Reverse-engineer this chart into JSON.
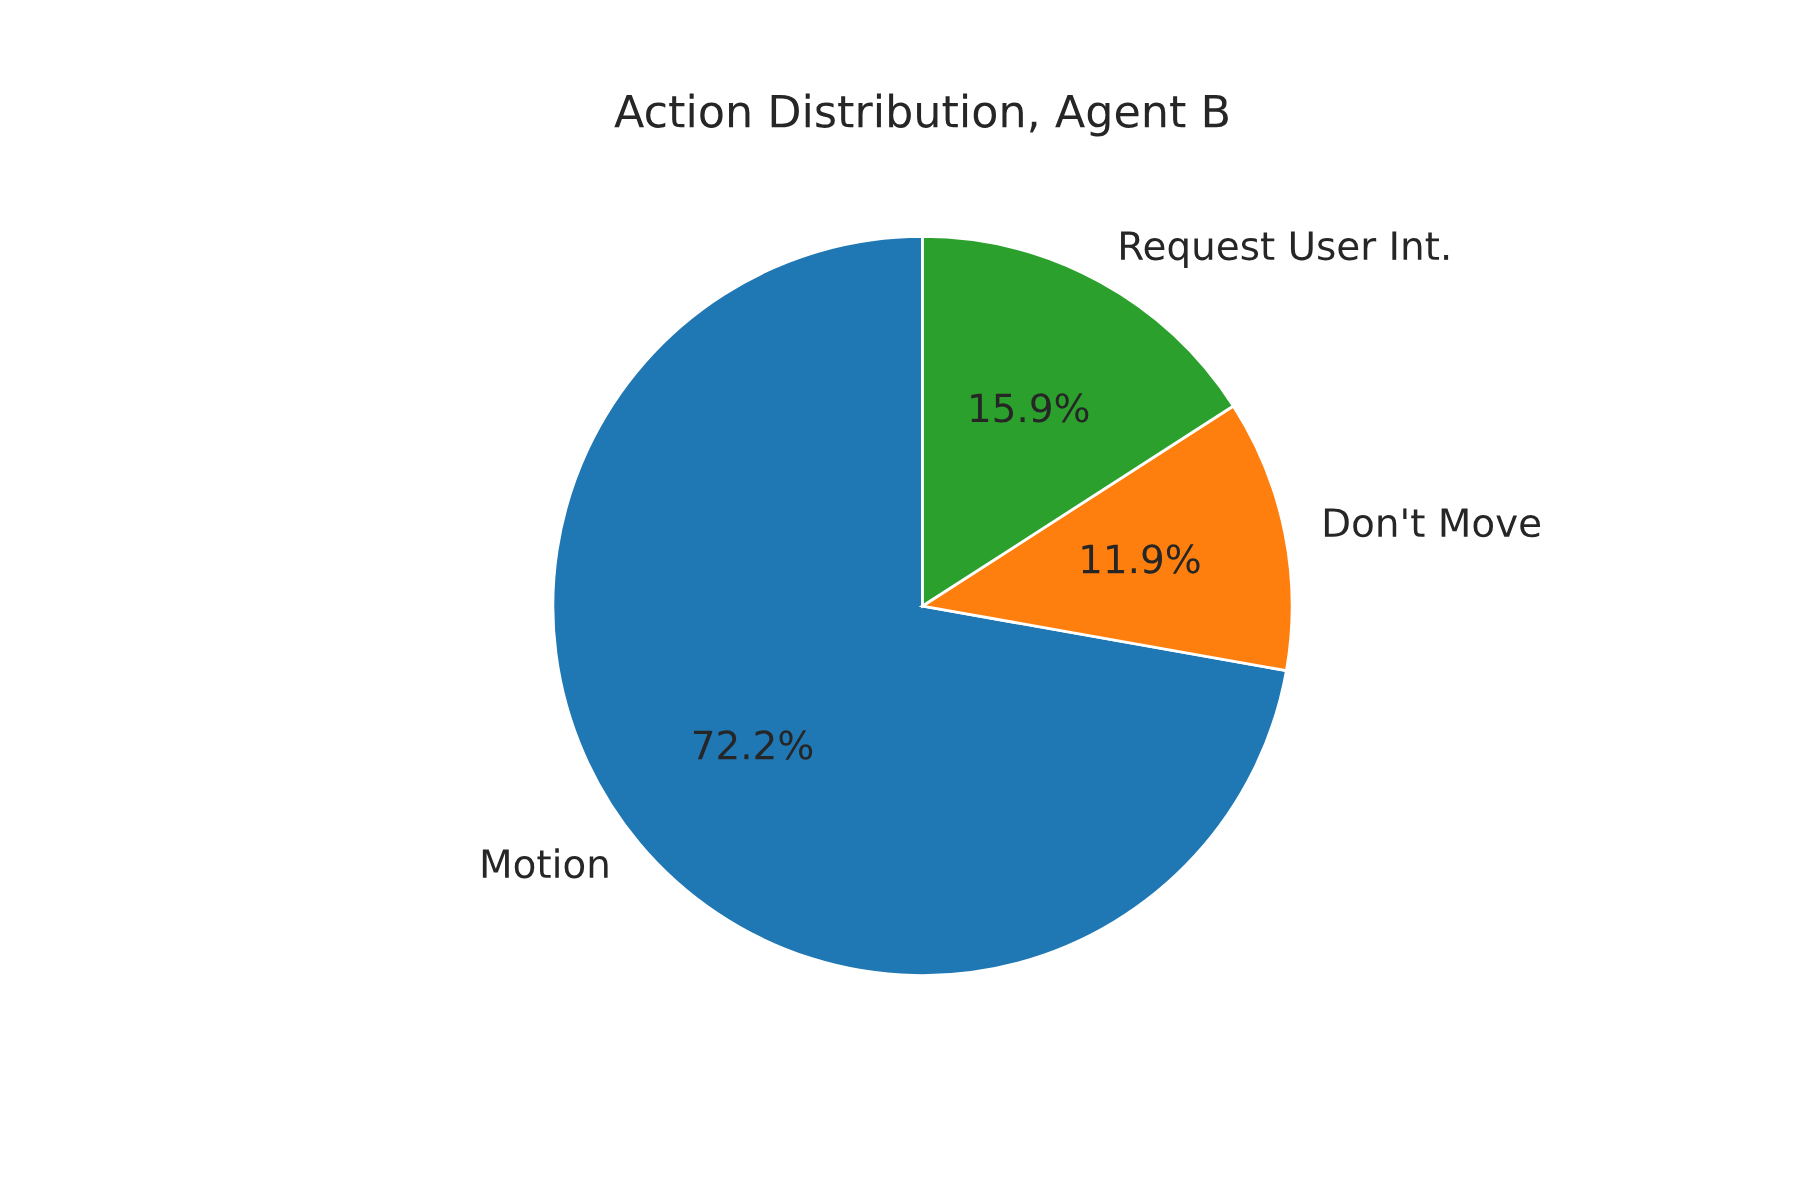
{
  "chart_data": {
    "type": "pie",
    "title": "Action Distribution, Agent B",
    "categories": [
      "Motion",
      "Don't Move",
      "Request User Int."
    ],
    "values": [
      72.2,
      11.9,
      15.9
    ],
    "colors": [
      "#1f77b4",
      "#ff7f0e",
      "#2ca02c"
    ],
    "value_labels": [
      "72.2%",
      "11.9%",
      "15.9%"
    ]
  }
}
